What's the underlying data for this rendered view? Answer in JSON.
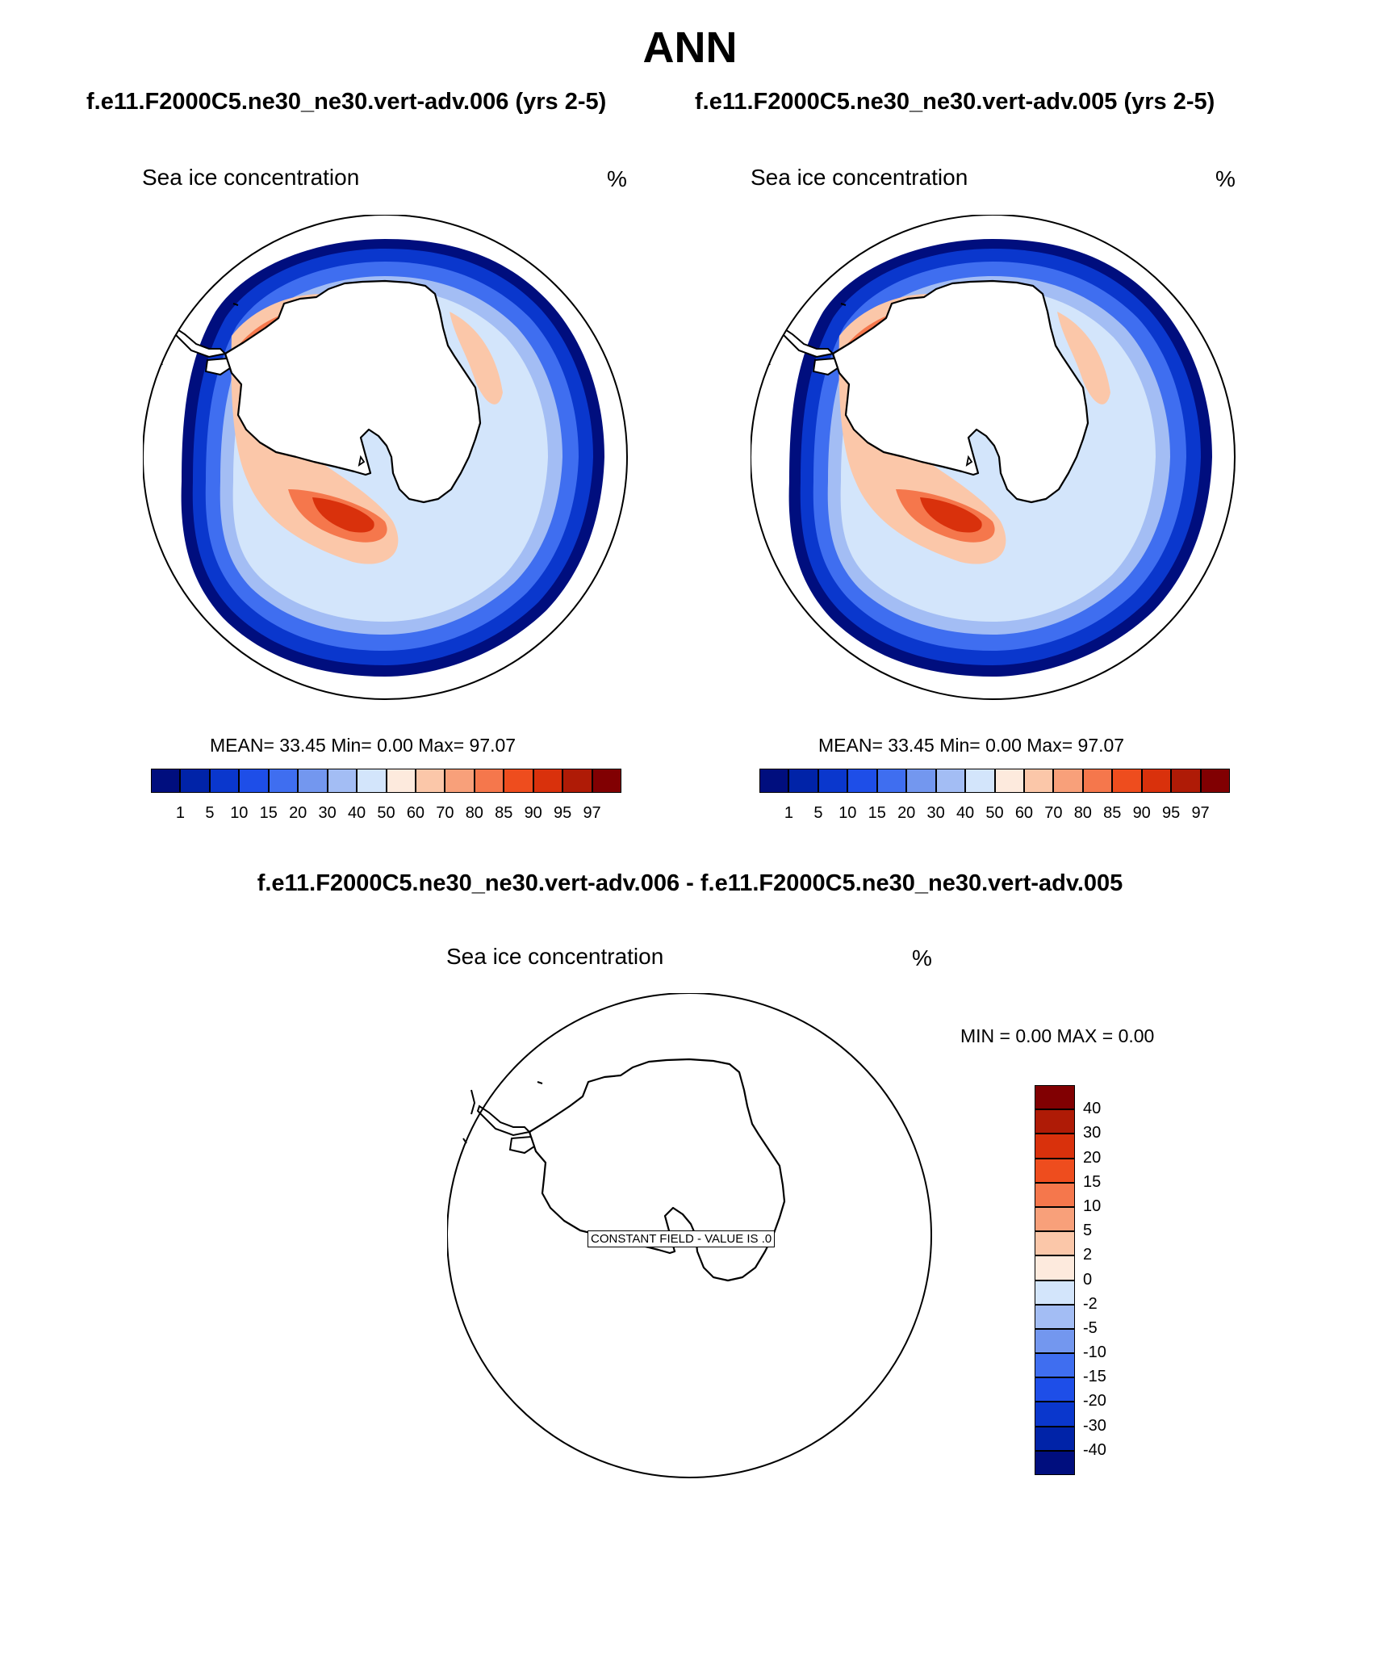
{
  "page": {
    "title": "ANN",
    "case_left": "f.e11.F2000C5.ne30_ne30.vert-adv.006 (yrs 2-5)",
    "case_right": "f.e11.F2000C5.ne30_ne30.vert-adv.005 (yrs 2-5)",
    "diff_title": "f.e11.F2000C5.ne30_ne30.vert-adv.006 - f.e11.F2000C5.ne30_ne30.vert-adv.005"
  },
  "panels": [
    {
      "variable": "Sea ice concentration",
      "units": "%",
      "stats": "MEAN=  33.45  Min=   0.00  Max=  97.07"
    },
    {
      "variable": "Sea ice concentration",
      "units": "%",
      "stats": "MEAN=  33.45  Min=   0.00  Max=  97.07"
    }
  ],
  "diff_panel": {
    "variable": "Sea ice concentration",
    "units": "%",
    "stats": "MIN =   0.00 MAX =   0.00",
    "constant_label": "CONSTANT FIELD - VALUE IS .0"
  },
  "colorbar_main": {
    "labels": [
      "1",
      "5",
      "10",
      "15",
      "20",
      "30",
      "40",
      "50",
      "60",
      "70",
      "80",
      "85",
      "90",
      "95",
      "97"
    ],
    "colors": [
      "#000e7e",
      "#0023a8",
      "#0a37cd",
      "#1e4ee8",
      "#3f6ef0",
      "#7397ef",
      "#a3bdf4",
      "#d3e5fb",
      "#fdeadd",
      "#fbc7a9",
      "#f8a07a",
      "#f5774c",
      "#ee4d1e",
      "#d9310c",
      "#af1b06",
      "#810002"
    ]
  },
  "colorbar_diff": {
    "labels": [
      "40",
      "30",
      "20",
      "15",
      "10",
      "5",
      "2",
      "0",
      "-2",
      "-5",
      "-10",
      "-15",
      "-20",
      "-30",
      "-40"
    ],
    "colors": [
      "#810002",
      "#af1b06",
      "#d9310c",
      "#ee4d1e",
      "#f5774c",
      "#f8a07a",
      "#fbc7a9",
      "#fdeadd",
      "#d3e5fb",
      "#a3bdf4",
      "#7397ef",
      "#3f6ef0",
      "#1e4ee8",
      "#0a37cd",
      "#0023a8",
      "#000e7e"
    ]
  }
}
